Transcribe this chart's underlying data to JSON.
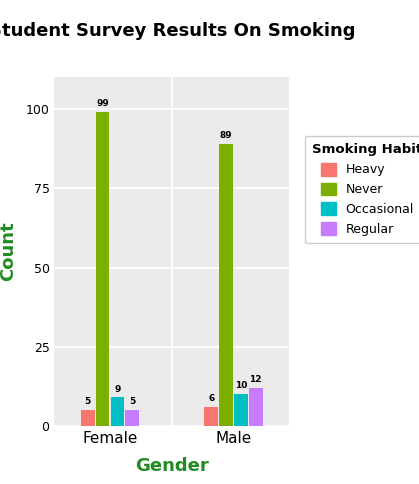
{
  "title": "Student Survey Results On Smoking",
  "xlabel": "Gender",
  "ylabel": "Count",
  "legend_title": "Smoking Habit",
  "categories": [
    "Female",
    "Male"
  ],
  "habits": [
    "Heavy",
    "Never",
    "Occasional",
    "Regular"
  ],
  "colors": {
    "Heavy": "#F8766D",
    "Never": "#7CAE00",
    "Occasional": "#00BFC4",
    "Regular": "#C77CFF"
  },
  "values": {
    "Female": {
      "Heavy": 5,
      "Never": 99,
      "Occasional": 9,
      "Regular": 5
    },
    "Male": {
      "Heavy": 6,
      "Never": 89,
      "Occasional": 10,
      "Regular": 12
    }
  },
  "ylim": [
    0,
    110
  ],
  "yticks": [
    0,
    25,
    50,
    75,
    100
  ],
  "bg_color": "#EBEBEB",
  "axis_label_color": "#228B22",
  "title_color": "#000000",
  "bar_width": 0.12,
  "group_centers": [
    1.0,
    2.0
  ]
}
